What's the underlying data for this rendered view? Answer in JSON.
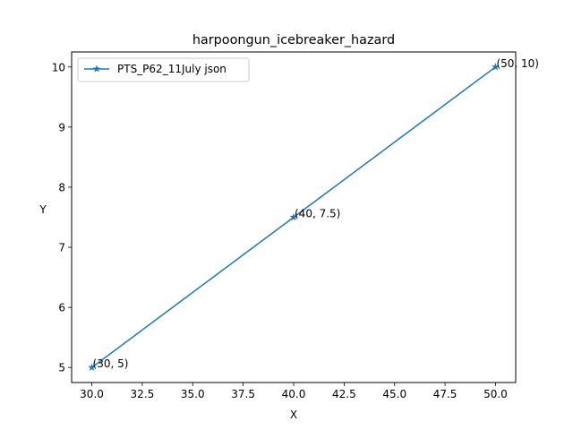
{
  "chart_data": {
    "type": "line",
    "title": "harpoongun_icebreaker_hazard",
    "xlabel": "X",
    "ylabel": "Y",
    "xlim": [
      29.0,
      51.0
    ],
    "ylim": [
      4.75,
      10.25
    ],
    "x_ticks": [
      30.0,
      32.5,
      35.0,
      37.5,
      40.0,
      42.5,
      45.0,
      47.5,
      50.0
    ],
    "x_tick_labels": [
      "30.0",
      "32.5",
      "35.0",
      "37.5",
      "40.0",
      "42.5",
      "45.0",
      "47.5",
      "50.0"
    ],
    "y_ticks": [
      5,
      6,
      7,
      8,
      9,
      10
    ],
    "y_tick_labels": [
      "5",
      "6",
      "7",
      "8",
      "9",
      "10"
    ],
    "grid": false,
    "legend_position": "upper-left",
    "series": [
      {
        "name": "PTS_P62_11July json",
        "color": "#1f77b4",
        "marker": "star",
        "x": [
          30,
          40,
          50
        ],
        "y": [
          5,
          7.5,
          10
        ]
      }
    ],
    "annotations": [
      {
        "x": 30,
        "y": 5,
        "text": "(30, 5)"
      },
      {
        "x": 40,
        "y": 7.5,
        "text": "(40, 7.5)"
      },
      {
        "x": 50,
        "y": 10,
        "text": "(50, 10)"
      }
    ]
  }
}
